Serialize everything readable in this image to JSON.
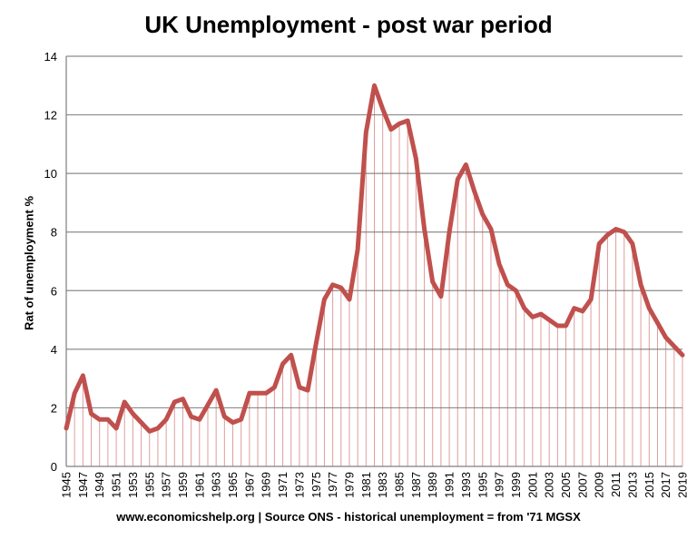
{
  "chart_data": {
    "type": "line",
    "title": "UK Unemployment - post war period",
    "ylabel": "Rat of unemployment %",
    "xlabel": "www.economicshelp.org | Source ONS - historical unemployment = from '71 MGSX",
    "ylim": [
      0,
      14
    ],
    "yticks": [
      "0",
      "2",
      "4",
      "6",
      "8",
      "10",
      "12",
      "14"
    ],
    "grid": "horizontal",
    "x": [
      1945,
      1946,
      1947,
      1948,
      1949,
      1950,
      1951,
      1952,
      1953,
      1954,
      1955,
      1956,
      1957,
      1958,
      1959,
      1960,
      1961,
      1962,
      1963,
      1964,
      1965,
      1966,
      1967,
      1968,
      1969,
      1970,
      1971,
      1972,
      1973,
      1974,
      1975,
      1976,
      1977,
      1978,
      1979,
      1980,
      1981,
      1982,
      1983,
      1984,
      1985,
      1986,
      1987,
      1988,
      1989,
      1990,
      1991,
      1992,
      1993,
      1994,
      1995,
      1996,
      1997,
      1998,
      1999,
      2000,
      2001,
      2002,
      2003,
      2004,
      2005,
      2006,
      2007,
      2008,
      2009,
      2010,
      2011,
      2012,
      2013,
      2014,
      2015,
      2016,
      2017,
      2018,
      2019
    ],
    "xtick_labels": [
      "1945",
      "1947",
      "1949",
      "1951",
      "1953",
      "1955",
      "1957",
      "1959",
      "1961",
      "1963",
      "1965",
      "1967",
      "1969",
      "1971",
      "1973",
      "1975",
      "1977",
      "1979",
      "1981",
      "1983",
      "1985",
      "1987",
      "1989",
      "1991",
      "1993",
      "1995",
      "1997",
      "1999",
      "2001",
      "2003",
      "2005",
      "2007",
      "2009",
      "2011",
      "2013",
      "2015",
      "2017",
      "2019"
    ],
    "series": [
      {
        "values": [
          1.3,
          2.5,
          3.1,
          1.8,
          1.6,
          1.6,
          1.3,
          2.2,
          1.8,
          1.5,
          1.2,
          1.3,
          1.6,
          2.2,
          2.3,
          1.7,
          1.6,
          2.1,
          2.6,
          1.7,
          1.5,
          1.6,
          2.5,
          2.5,
          2.5,
          2.7,
          3.5,
          3.8,
          2.7,
          2.6,
          4.2,
          5.7,
          6.2,
          6.1,
          5.7,
          7.4,
          11.4,
          13.0,
          12.2,
          11.5,
          11.7,
          11.8,
          10.5,
          8.1,
          6.3,
          5.8,
          8.0,
          9.8,
          10.3,
          9.4,
          8.6,
          8.1,
          6.9,
          6.2,
          6.0,
          5.4,
          5.1,
          5.2,
          5.0,
          4.8,
          4.8,
          5.4,
          5.3,
          5.7,
          7.6,
          7.9,
          8.1,
          8.0,
          7.6,
          6.2,
          5.4,
          4.9,
          4.4,
          4.1,
          3.8
        ],
        "color": "#c0504d"
      }
    ]
  }
}
